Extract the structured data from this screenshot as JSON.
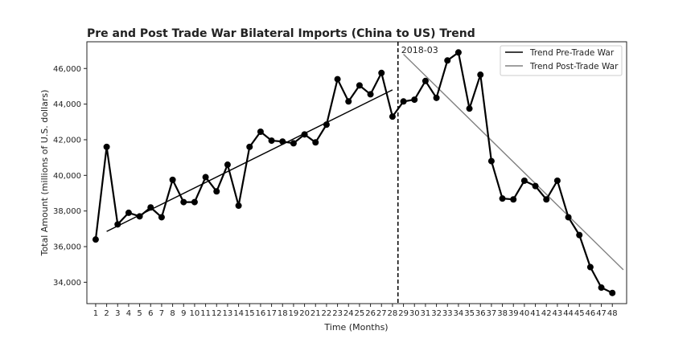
{
  "chart_data": {
    "type": "line",
    "title": "Pre and Post Trade War Bilateral Imports (China to US) Trend",
    "xlabel": "Time (Months)",
    "ylabel": "Total Amount (millions of U.S. dollars)",
    "x": [
      1,
      2,
      3,
      4,
      5,
      6,
      7,
      8,
      9,
      10,
      11,
      12,
      13,
      14,
      15,
      16,
      17,
      18,
      19,
      20,
      21,
      22,
      23,
      24,
      25,
      26,
      27,
      28,
      29,
      30,
      31,
      32,
      33,
      34,
      35,
      36,
      37,
      38,
      39,
      40,
      41,
      42,
      43,
      44,
      45,
      46,
      47,
      48
    ],
    "xlim": [
      0.2,
      49.3
    ],
    "ylim": [
      32800,
      47500
    ],
    "yticks": [
      34000,
      36000,
      38000,
      40000,
      42000,
      44000,
      46000
    ],
    "ytick_labels": [
      "34,000",
      "36,000",
      "38,000",
      "40,000",
      "42,000",
      "44,000",
      "46,000"
    ],
    "series": [
      {
        "values": [
          36400,
          41600,
          37250,
          37900,
          37700,
          38200,
          37650,
          39750,
          38500,
          38500,
          39900,
          39100,
          40600,
          38300,
          41600,
          42450,
          41950,
          41900,
          41800,
          42300,
          41850,
          42850,
          45400,
          44150,
          45050,
          44550,
          45750,
          43300,
          44150,
          44250,
          45300,
          44350,
          46450,
          46900,
          43750,
          45650,
          40800,
          38700,
          38650,
          39700,
          39400,
          38650,
          39700,
          37650,
          36650,
          34850,
          33700,
          33400
        ],
        "color": "#000000"
      }
    ],
    "trend_lines": [
      {
        "name": "Trend Pre-Trade War",
        "x": [
          2,
          28
        ],
        "y": [
          36850,
          44800
        ],
        "color": "#000000"
      },
      {
        "name": "Trend Post-Trade War",
        "x": [
          29,
          49
        ],
        "y": [
          46800,
          34700
        ],
        "color": "#808080"
      }
    ],
    "vline": {
      "x": 28.5,
      "label": "2018-03"
    },
    "legend_position": "top-right",
    "grid": false
  }
}
